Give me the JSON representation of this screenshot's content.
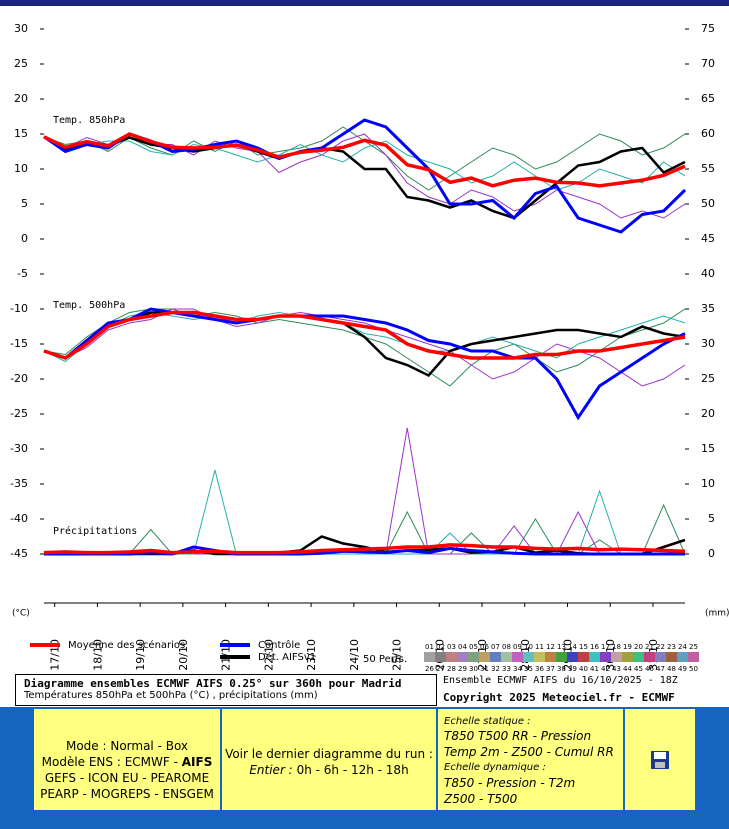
{
  "chart_data": {
    "type": "line",
    "annotations": [
      "Temp. 850hPa",
      "Temp. 500hPa",
      "Précipitations"
    ],
    "ylabel": "(°C)",
    "y2label": "(mm)",
    "xlim": [
      0,
      360
    ],
    "ylim": [
      -52,
      33
    ],
    "y2lim": [
      -7,
      78
    ],
    "xticks": [
      {
        "value": 6,
        "label": "17/10"
      },
      {
        "value": 30,
        "label": "18/10"
      },
      {
        "value": 54,
        "label": "19/10"
      },
      {
        "value": 78,
        "label": "20/10"
      },
      {
        "value": 102,
        "label": "21/10"
      },
      {
        "value": 126,
        "label": "22/10"
      },
      {
        "value": 150,
        "label": "23/10"
      },
      {
        "value": 174,
        "label": "24/10"
      },
      {
        "value": 198,
        "label": "25/10"
      },
      {
        "value": 222,
        "label": "26/10"
      },
      {
        "value": 246,
        "label": "27/10"
      },
      {
        "value": 270,
        "label": "28/10"
      },
      {
        "value": 294,
        "label": "29/10"
      },
      {
        "value": 318,
        "label": "30/10"
      },
      {
        "value": 342,
        "label": "31/10"
      }
    ],
    "yticks": [
      30,
      25,
      20,
      15,
      10,
      5,
      0,
      -5,
      -10,
      -15,
      -20,
      -25,
      -30,
      -35,
      -40,
      -45
    ],
    "y2ticks": [
      75,
      70,
      65,
      60,
      55,
      50,
      45,
      40,
      35,
      30,
      25,
      20,
      15,
      10,
      5,
      0
    ],
    "x": [
      0,
      12,
      24,
      36,
      48,
      60,
      72,
      84,
      96,
      108,
      120,
      132,
      144,
      156,
      168,
      180,
      192,
      204,
      216,
      228,
      240,
      252,
      264,
      276,
      288,
      300,
      312,
      324,
      336,
      348,
      360
    ],
    "series": [
      {
        "color": "#2e8b57",
        "values": [
          14.6,
          13.5,
          14,
          12.5,
          14.5,
          13,
          12,
          14,
          12.5,
          14,
          12,
          12.5,
          13,
          14,
          16,
          14,
          12,
          9,
          7,
          9,
          11,
          13,
          12,
          10,
          11,
          13,
          15,
          14,
          12,
          13,
          15
        ]
      },
      {
        "color": "#9932cc",
        "values": [
          14.6,
          13,
          14.5,
          13.5,
          15,
          13.5,
          13.5,
          12,
          14,
          13,
          12.5,
          9.5,
          11,
          12,
          14,
          15,
          12,
          8,
          6,
          5,
          7,
          6,
          4,
          5,
          7,
          6,
          5,
          3,
          4,
          3,
          5
        ]
      },
      {
        "color": "#20b2aa",
        "values": [
          14.6,
          12.5,
          13.5,
          14,
          14,
          12.5,
          12,
          13.5,
          13,
          12,
          11,
          12,
          13.5,
          12,
          11,
          13,
          14,
          12,
          11,
          10,
          8,
          9,
          11,
          9,
          7,
          8,
          10,
          9,
          8,
          11,
          9
        ]
      },
      {
        "color": "#ff0000",
        "name": "Moyenne des scénarios",
        "values": [
          14.6,
          13.1,
          13.9,
          13.3,
          15,
          13.9,
          13.1,
          13,
          13.1,
          13.4,
          12.7,
          11.7,
          12.4,
          12.7,
          13.1,
          14.1,
          13.4,
          10.6,
          9.9,
          8.1,
          8.7,
          7.6,
          8.4,
          8.7,
          8.1,
          8,
          7.6,
          8,
          8.4,
          9.1,
          10.4
        ]
      },
      {
        "color": "#0000ff",
        "name": "Contrôle",
        "values": [
          14.6,
          12.5,
          13.5,
          13,
          15,
          14,
          12.5,
          12.8,
          13.5,
          14,
          13,
          11.5,
          12.5,
          13,
          15,
          17,
          16,
          13,
          10,
          5,
          5,
          5.5,
          3,
          6.5,
          7.5,
          3,
          2,
          1,
          3.5,
          4,
          7
        ]
      },
      {
        "color": "#000000",
        "name": "Dét. AIFSv1",
        "values": [
          14.6,
          12.8,
          13.5,
          13.3,
          14.5,
          13.5,
          13,
          12.5,
          13,
          13.5,
          12.5,
          11.5,
          12.5,
          13,
          12.5,
          10,
          10,
          6,
          5.5,
          4.5,
          5.5,
          4,
          3,
          5.5,
          8,
          10.5,
          11,
          12.5,
          13,
          9.5,
          11
        ]
      },
      {
        "color": "#2e8b57",
        "values": [
          -16,
          -16.5,
          -14,
          -12,
          -10.5,
          -10,
          -10,
          -11,
          -10.5,
          -11,
          -12,
          -11.5,
          -12,
          -12.5,
          -13,
          -14,
          -15,
          -17,
          -19,
          -21,
          -18,
          -16,
          -15,
          -17,
          -19,
          -18,
          -16,
          -14,
          -13,
          -12,
          -10
        ]
      },
      {
        "color": "#9932cc",
        "values": [
          -16,
          -17,
          -15.5,
          -13,
          -12,
          -11.5,
          -10,
          -10,
          -11.5,
          -12.5,
          -12,
          -11,
          -10.5,
          -11,
          -11.5,
          -12,
          -13,
          -14,
          -15,
          -16,
          -18,
          -20,
          -19,
          -17,
          -15,
          -16,
          -17,
          -19,
          -21,
          -20,
          -18
        ]
      },
      {
        "color": "#20b2aa",
        "values": [
          -16,
          -17.5,
          -15,
          -12.5,
          -11,
          -10.5,
          -11,
          -11.5,
          -11,
          -12,
          -11,
          -10.5,
          -11,
          -11.5,
          -12,
          -13.5,
          -14,
          -15,
          -16,
          -16,
          -15,
          -14,
          -15,
          -16,
          -17,
          -15,
          -14,
          -13,
          -12,
          -11,
          -12
        ]
      },
      {
        "color": "#ff0000",
        "values": [
          -16,
          -17,
          -15,
          -12.5,
          -11.5,
          -11,
          -10.5,
          -10.5,
          -11,
          -11.5,
          -11.5,
          -11,
          -11,
          -11.5,
          -12,
          -12.5,
          -13,
          -15,
          -16,
          -16.5,
          -17,
          -17,
          -17,
          -16.5,
          -16.5,
          -16,
          -16,
          -15.5,
          -15,
          -14.5,
          -14
        ]
      },
      {
        "color": "#0000ff",
        "values": [
          -16,
          -17,
          -14.5,
          -12,
          -11.5,
          -10,
          -10.5,
          -11,
          -11.5,
          -12,
          -11.5,
          -11,
          -11,
          -11,
          -11,
          -11.5,
          -12,
          -13,
          -14.5,
          -15,
          -16,
          -16,
          -17,
          -17,
          -20,
          -25.5,
          -21,
          -19,
          -17,
          -15,
          -13.5
        ]
      },
      {
        "color": "#000000",
        "values": [
          -16,
          -17,
          -15,
          -12.5,
          -11.5,
          -10.5,
          -10.5,
          -10.5,
          -11,
          -11.5,
          -11.5,
          -11,
          -11,
          -11.5,
          -12,
          -14,
          -17,
          -18,
          -19.5,
          -16,
          -15,
          -14.5,
          -14,
          -13.5,
          -13,
          -13,
          -13.5,
          -14,
          -12.5,
          -13.5,
          -14
        ]
      },
      {
        "color": "#2e8b57",
        "axis": "y2",
        "values": [
          0,
          0,
          0,
          0,
          0,
          3.5,
          0,
          0,
          0,
          0,
          0,
          0,
          0,
          0,
          0,
          0,
          0,
          6,
          0,
          0,
          3,
          0,
          0,
          5,
          0,
          0,
          2,
          0,
          0,
          7,
          0
        ]
      },
      {
        "color": "#9932cc",
        "axis": "y2",
        "values": [
          0,
          0,
          0,
          0,
          0,
          0,
          0,
          0,
          0,
          0,
          0,
          0,
          0,
          0,
          0,
          0,
          0,
          18,
          0,
          0,
          0,
          0,
          4,
          0,
          0,
          6,
          0,
          0,
          0,
          0,
          0
        ]
      },
      {
        "color": "#20b2aa",
        "axis": "y2",
        "values": [
          0,
          0,
          0,
          0,
          0,
          0,
          0,
          0,
          12,
          0,
          0,
          0,
          0,
          0,
          0,
          0,
          0,
          0,
          0,
          3,
          0,
          0,
          0,
          0,
          0,
          0,
          9,
          0,
          0,
          0,
          0
        ]
      },
      {
        "color": "#ff0000",
        "axis": "y2",
        "values": [
          0.2,
          0.3,
          0.2,
          0.2,
          0.3,
          0.5,
          0.2,
          0.3,
          0.4,
          0.2,
          0.2,
          0.2,
          0.3,
          0.5,
          0.6,
          0.7,
          0.8,
          1,
          1,
          1.3,
          1.2,
          1,
          1,
          0.8,
          0.7,
          0.8,
          0.6,
          0.7,
          0.6,
          0.5,
          0.4
        ]
      },
      {
        "color": "#0000ff",
        "axis": "y2",
        "values": [
          0,
          0,
          0,
          0,
          0,
          0.2,
          0,
          1,
          0.5,
          0,
          0,
          0,
          0,
          0.1,
          0.4,
          0.3,
          0.2,
          0.5,
          0.2,
          0.8,
          0.5,
          0.3,
          0.1,
          0,
          0,
          0,
          0,
          0,
          0,
          0,
          0
        ]
      },
      {
        "color": "#000000",
        "axis": "y2",
        "values": [
          0,
          0,
          0,
          0,
          0,
          0,
          0,
          0.5,
          0,
          0,
          0,
          0.2,
          0.5,
          2.5,
          1.5,
          1,
          0.3,
          0.5,
          0.6,
          0.8,
          0.2,
          0.3,
          1,
          0.2,
          0.5,
          0.1,
          0,
          0,
          0,
          1,
          2
        ]
      }
    ],
    "perturbations_label": "50 Perts.",
    "perturbation_labels": [
      "01",
      "02",
      "03",
      "04",
      "05",
      "06",
      "07",
      "08",
      "09",
      "10",
      "11",
      "12",
      "13",
      "14",
      "15",
      "16",
      "17",
      "18",
      "19",
      "20",
      "21",
      "22",
      "23",
      "24",
      "25",
      "26",
      "27",
      "28",
      "29",
      "30",
      "31",
      "32",
      "33",
      "34",
      "35",
      "36",
      "37",
      "38",
      "39",
      "40",
      "41",
      "42",
      "43",
      "44",
      "45",
      "46",
      "47",
      "48",
      "49",
      "50"
    ],
    "perturbation_colors": [
      "#a0a0a0",
      "#808080",
      "#c08080",
      "#a080c0",
      "#80a080",
      "#c0a060",
      "#6080c0",
      "#a0c0a0",
      "#c060c0",
      "#60c0c0",
      "#c0c060",
      "#c08040",
      "#40a040",
      "#4040c0",
      "#c04040",
      "#40c0c0",
      "#8040c0",
      "#c0a0a0",
      "#a0a040",
      "#40c080",
      "#c04080",
      "#8080c0",
      "#a06040",
      "#60a0c0",
      "#c060a0"
    ]
  },
  "info": {
    "title": "Diagramme ensembles ECMWF AIFS 0.25° sur 360h pour Madrid",
    "subtitle": "Températures 850hPa et 500hPa (°C) , précipitations (mm)",
    "run": "Ensemble ECMWF AIFS du 16/10/2025 - 18Z",
    "copyright": "Copyright 2025 Meteociel.fr - ECMWF"
  },
  "nav": {
    "mode": "Mode : Normal - Box",
    "model_prefix": "Modèle ENS : ECMWF -",
    "model_current": "AIFS",
    "models_1": "GEFS - ICON EU - PEAROME",
    "models_2": "PEARP - MOGREPS - ENSGEM",
    "last_run": "Voir le dernier diagramme du run :",
    "whole": "Entier :",
    "runs": "0h - 6h - 12h - 18h",
    "static": "Echelle statique :",
    "static_1": "T850 T500 RR - Pression",
    "static_2": "Temp 2m - Z500 - Cumul RR",
    "dynamic": "Echelle dynamique :",
    "dynamic_1": "T850 - Pression - T2m",
    "dynamic_2": "Z500 - T500"
  }
}
